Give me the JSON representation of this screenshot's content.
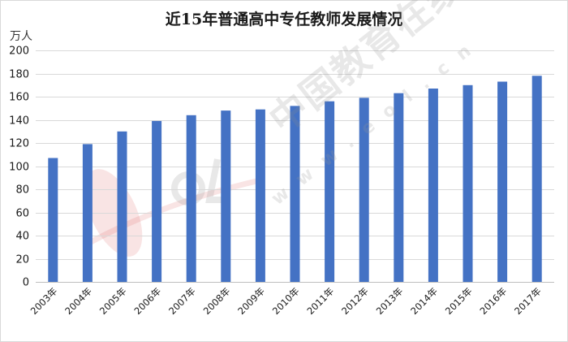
{
  "chart_data": {
    "type": "bar",
    "title": "近15年普通高中专任教师发展情况",
    "unit": "万人",
    "categories": [
      "2003年",
      "2004年",
      "2005年",
      "2006年",
      "2007年",
      "2008年",
      "2009年",
      "2010年",
      "2011年",
      "2012年",
      "2013年",
      "2014年",
      "2015年",
      "2016年",
      "2017年"
    ],
    "values": [
      107,
      119,
      130,
      139,
      144,
      148,
      149,
      152,
      156,
      159,
      163,
      167,
      170,
      173,
      178
    ],
    "ylim": [
      0,
      200
    ],
    "yticks": [
      0,
      20,
      40,
      60,
      80,
      100,
      120,
      140,
      160,
      180,
      200
    ],
    "grid": true,
    "bar_color": "#4472C4"
  },
  "watermark": {
    "logo_text": "eol",
    "text": "中国教育在线",
    "url": "www.eol.cn"
  }
}
